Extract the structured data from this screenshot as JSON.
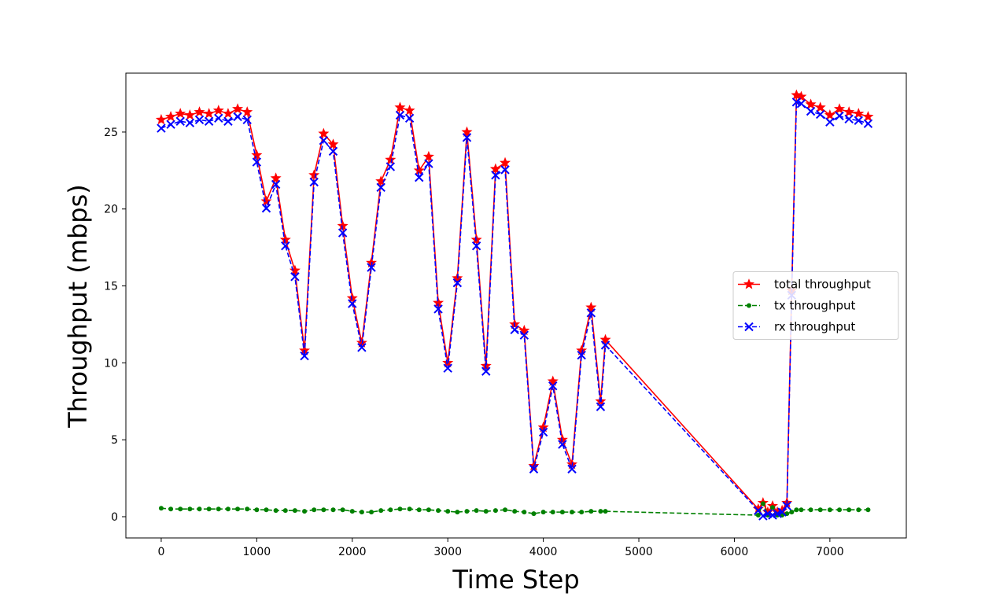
{
  "chart_data": {
    "type": "line",
    "xlabel": "Time Step",
    "ylabel": "Throughput (mbps)",
    "xlim": [
      -370,
      7800
    ],
    "ylim": [
      -1.38,
      28.83
    ],
    "xticks": [
      0,
      1000,
      2000,
      3000,
      4000,
      5000,
      6000,
      7000
    ],
    "yticks": [
      0,
      5,
      10,
      15,
      20,
      25
    ],
    "grid": false,
    "legend_loc": "center right",
    "x": [
      0,
      100,
      200,
      300,
      400,
      500,
      600,
      700,
      800,
      900,
      1000,
      1100,
      1200,
      1300,
      1400,
      1500,
      1600,
      1700,
      1800,
      1900,
      2000,
      2100,
      2200,
      2300,
      2400,
      2500,
      2600,
      2700,
      2800,
      2900,
      3000,
      3100,
      3200,
      3300,
      3400,
      3500,
      3600,
      3700,
      3800,
      3900,
      4000,
      4100,
      4200,
      4300,
      4400,
      4500,
      4600,
      4650,
      6250,
      6300,
      6350,
      6400,
      6450,
      6500,
      6550,
      6600,
      6650,
      6700,
      6800,
      6900,
      7000,
      7100,
      7200,
      7300,
      7400
    ],
    "series": [
      {
        "name": "total throughput",
        "color": "#ff0000",
        "linestyle": "solid",
        "marker": "star",
        "values": [
          25.8,
          26,
          26.2,
          26.1,
          26.3,
          26.2,
          26.4,
          26.2,
          26.5,
          26.3,
          23.5,
          20.5,
          22,
          18,
          16,
          10.8,
          22.2,
          24.9,
          24.2,
          18.9,
          14.2,
          11.3,
          16.5,
          21.8,
          23.2,
          26.6,
          26.4,
          22.5,
          23.4,
          13.9,
          10,
          15.5,
          25,
          18,
          9.8,
          22.6,
          23,
          12.5,
          12.1,
          3.3,
          5.8,
          8.8,
          5,
          3.4,
          10.8,
          13.6,
          7.5,
          11.5,
          0.5,
          0.9,
          0.3,
          0.7,
          0.3,
          0.4,
          0.9,
          14.7,
          27.4,
          27.3,
          26.8,
          26.6,
          26.1,
          26.5,
          26.3,
          26.2,
          26
        ]
      },
      {
        "name": "tx throughput",
        "color": "#008000",
        "linestyle": "dashed",
        "marker": "dot",
        "values": [
          0.55,
          0.5,
          0.5,
          0.5,
          0.5,
          0.5,
          0.5,
          0.5,
          0.5,
          0.5,
          0.45,
          0.45,
          0.4,
          0.4,
          0.4,
          0.35,
          0.45,
          0.45,
          0.45,
          0.45,
          0.35,
          0.3,
          0.3,
          0.4,
          0.45,
          0.5,
          0.5,
          0.45,
          0.45,
          0.4,
          0.35,
          0.3,
          0.35,
          0.4,
          0.35,
          0.4,
          0.45,
          0.35,
          0.3,
          0.2,
          0.3,
          0.3,
          0.3,
          0.3,
          0.3,
          0.35,
          0.35,
          0.35,
          0.1,
          0.85,
          0.1,
          0.6,
          0.1,
          0.1,
          0.2,
          0.3,
          0.45,
          0.45,
          0.45,
          0.45,
          0.45,
          0.45,
          0.45,
          0.45,
          0.45
        ]
      },
      {
        "name": "rx throughput",
        "color": "#0000ff",
        "linestyle": "dashed",
        "marker": "x",
        "values": [
          25.25,
          25.5,
          25.7,
          25.6,
          25.8,
          25.7,
          25.9,
          25.7,
          26,
          25.8,
          23.05,
          20.05,
          21.6,
          17.6,
          15.6,
          10.45,
          21.75,
          24.45,
          23.75,
          18.45,
          13.85,
          11,
          16.2,
          21.4,
          22.75,
          26.1,
          25.9,
          22.05,
          22.95,
          13.5,
          9.65,
          15.2,
          24.65,
          17.6,
          9.45,
          22.2,
          22.55,
          12.15,
          11.8,
          3.1,
          5.5,
          8.5,
          4.7,
          3.1,
          10.5,
          13.25,
          7.15,
          11.15,
          0.4,
          0.05,
          0.2,
          0.1,
          0.2,
          0.3,
          0.7,
          14.4,
          26.95,
          26.85,
          26.35,
          26.15,
          25.65,
          26.05,
          25.85,
          25.75,
          25.55
        ]
      }
    ]
  }
}
